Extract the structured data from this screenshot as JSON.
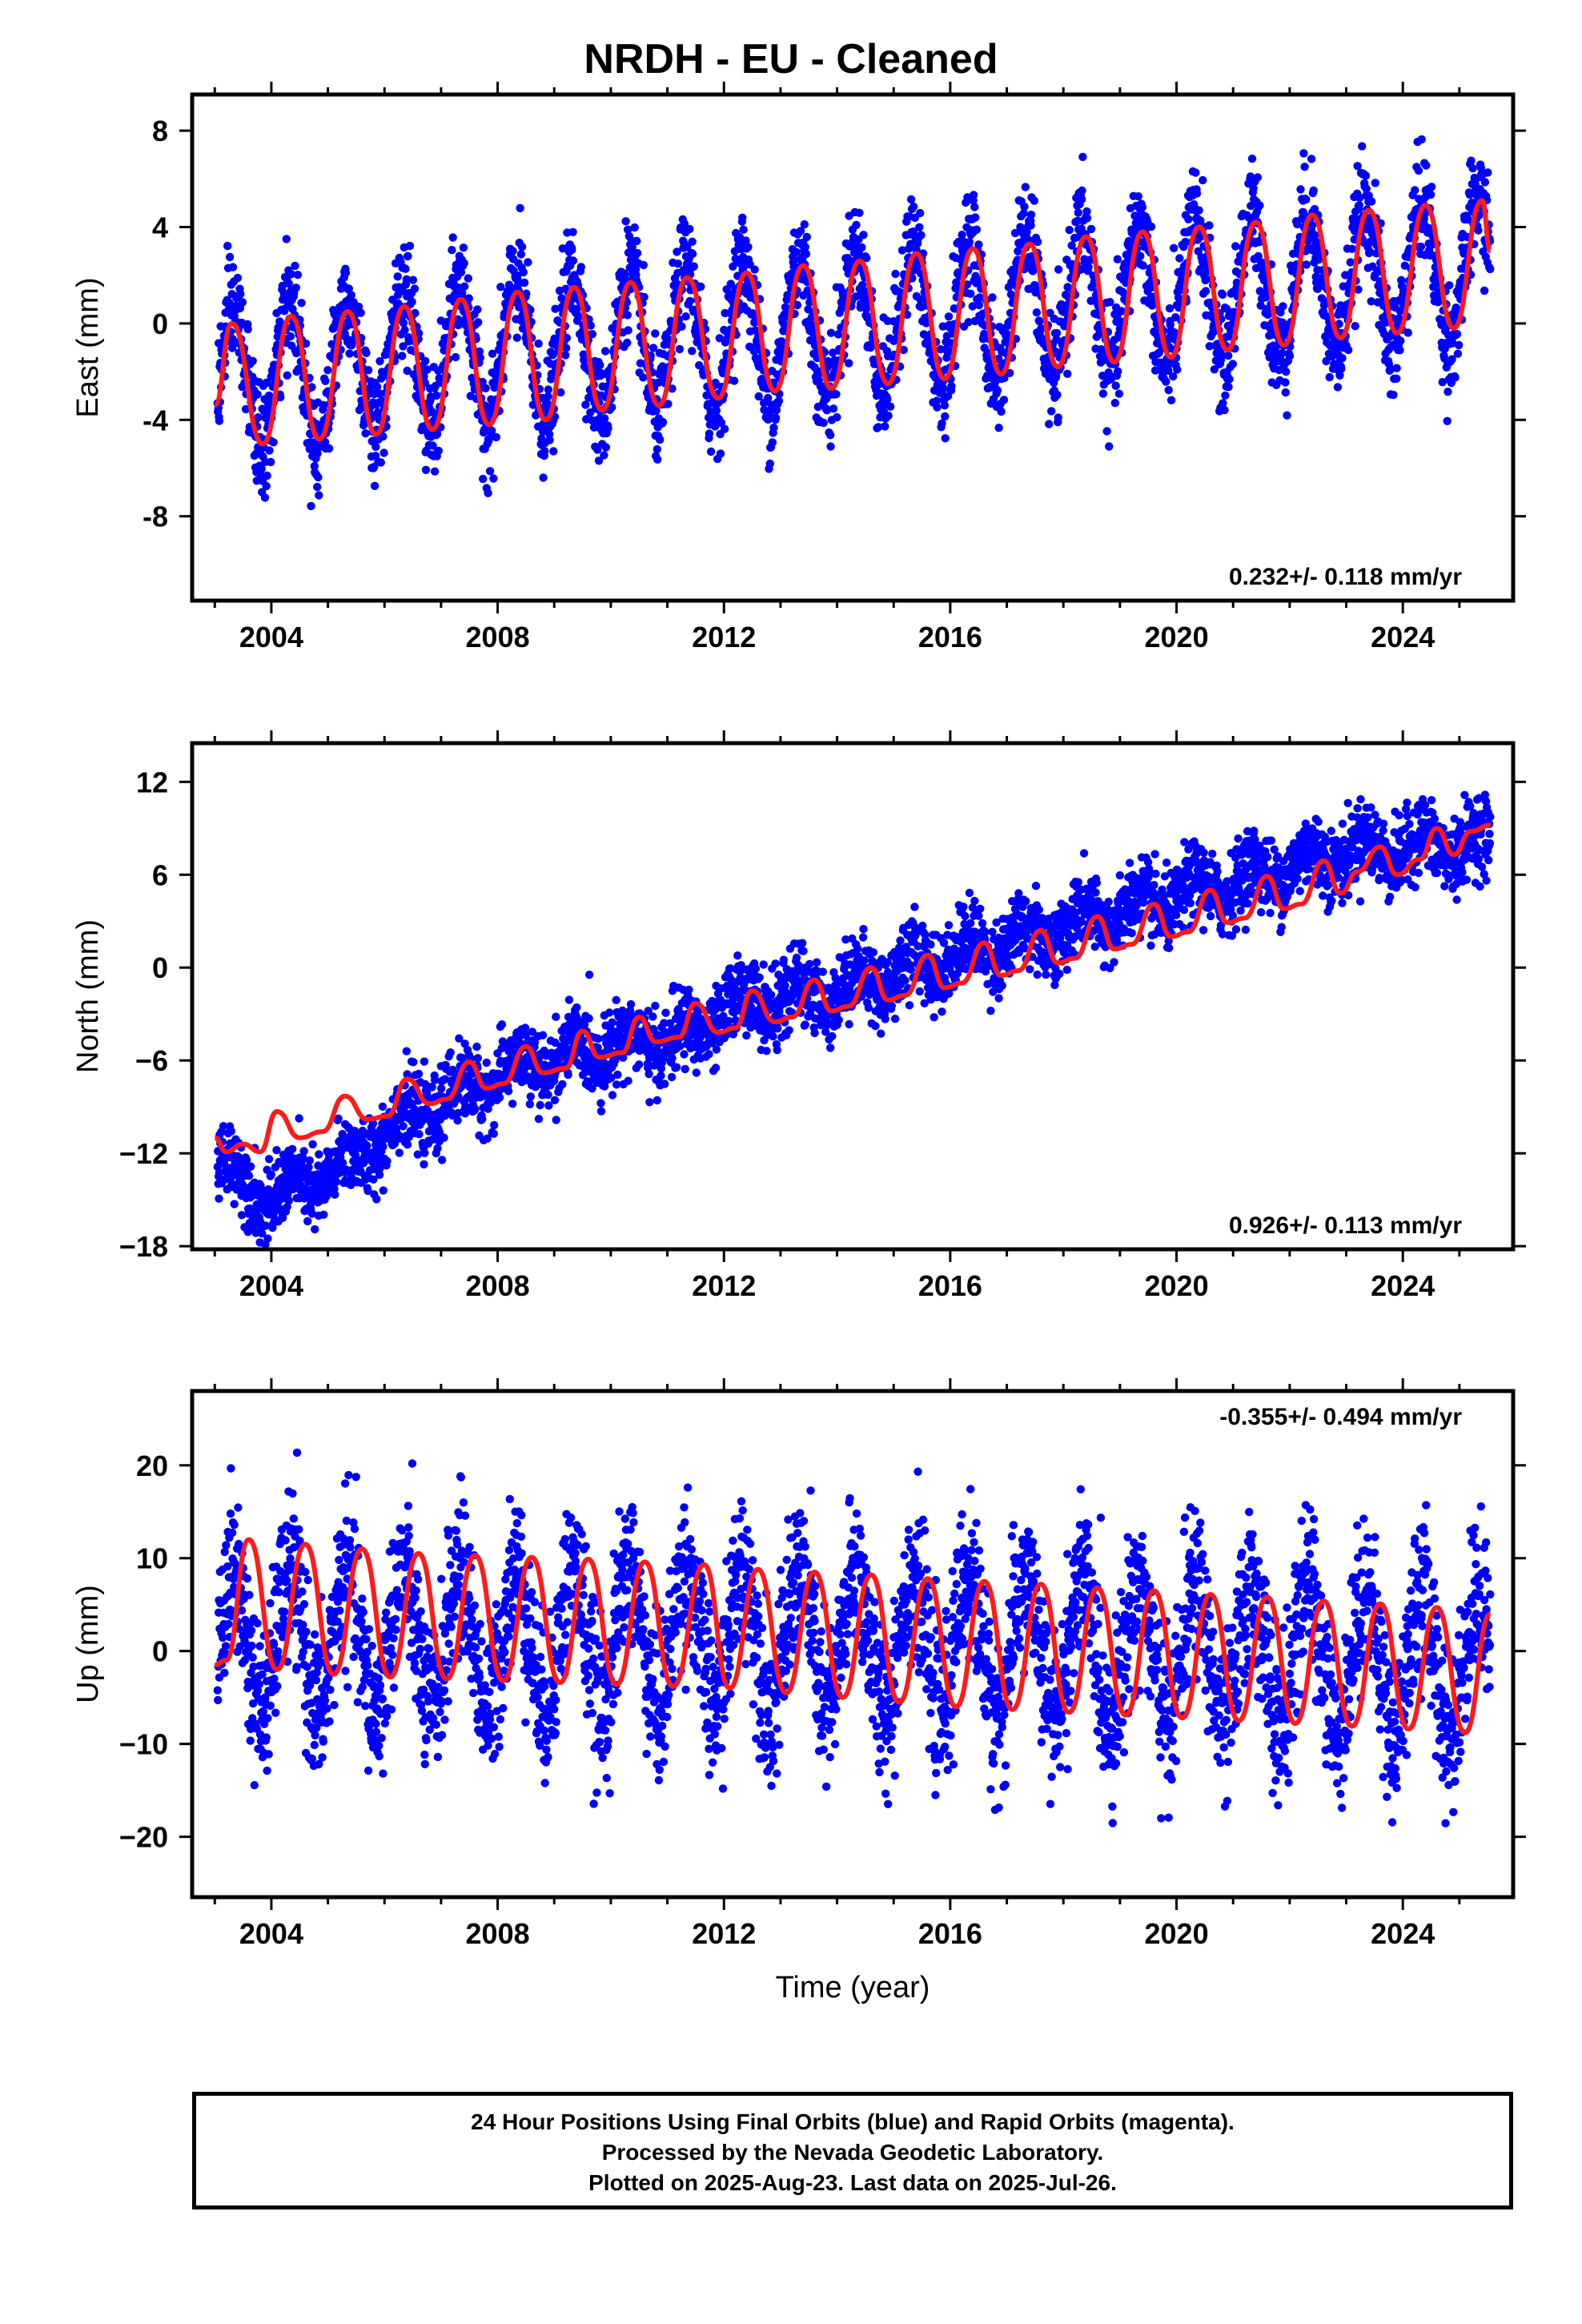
{
  "title": "NRDH  - EU - Cleaned",
  "xaxis_label": "Time (year)",
  "colors": {
    "points": "#0000ff",
    "model": "#ff1a1a",
    "frame": "#000000"
  },
  "footer": {
    "line1": "24 Hour Positions Using Final Orbits (blue) and Rapid Orbits (magenta).",
    "line2": "Processed by the Nevada Geodetic Laboratory.",
    "line3": "Plotted on 2025-Aug-23. Last data on 2025-Jul-26."
  },
  "chart_data": [
    {
      "type": "scatter",
      "component": "east",
      "ylabel": "East (mm)",
      "rate_label": "0.232+/- 0.118 mm/yr",
      "rate_label_position": "bottom-right",
      "xlim": [
        2002.6,
        2025.95
      ],
      "ylim": [
        -11.5,
        9.5
      ],
      "xticks": [
        2004,
        2008,
        2012,
        2016,
        2020,
        2024
      ],
      "yticks": [
        -8,
        -4,
        0,
        4,
        8
      ],
      "tick_labels": [
        "-8",
        "-4",
        "0",
        "4",
        "8"
      ],
      "series": [
        {
          "kind": "points",
          "x_range": [
            2003.05,
            2025.55
          ],
          "trend": [
            [
              2003.0,
              -2.4
            ],
            [
              2008.0,
              -1.2
            ],
            [
              2012.0,
              -0.5
            ],
            [
              2016.0,
              0.4
            ],
            [
              2020.0,
              1.3
            ],
            [
              2025.5,
              2.3
            ]
          ],
          "annual_amplitude": 2.9,
          "scatter_sd": 1.1
        },
        {
          "kind": "model",
          "x": [
            2003.0,
            2003.3,
            2003.85,
            2004.35,
            2004.85,
            2005.35,
            2005.85,
            2006.35,
            2006.85,
            2007.35,
            2007.85,
            2008.35,
            2008.85,
            2009.35,
            2009.85,
            2010.35,
            2010.85,
            2011.35,
            2011.9,
            2012.4,
            2012.9,
            2013.4,
            2013.9,
            2014.4,
            2014.9,
            2015.4,
            2015.9,
            2016.4,
            2016.9,
            2017.4,
            2017.9,
            2018.4,
            2018.9,
            2019.4,
            2019.9,
            2020.4,
            2020.9,
            2021.4,
            2021.9,
            2022.4,
            2022.9,
            2023.4,
            2023.9,
            2024.4,
            2024.9,
            2025.4,
            2025.55
          ],
          "y": [
            -3.4,
            0.0,
            -5.0,
            0.3,
            -4.8,
            0.5,
            -4.6,
            0.7,
            -4.4,
            1.0,
            -4.2,
            1.3,
            -4.0,
            1.5,
            -3.6,
            1.7,
            -3.4,
            1.9,
            -3.1,
            2.1,
            -2.8,
            2.4,
            -2.7,
            2.6,
            -2.5,
            2.9,
            -2.3,
            3.1,
            -2.1,
            3.3,
            -1.8,
            3.6,
            -1.6,
            3.8,
            -1.4,
            4.0,
            -1.1,
            4.2,
            -0.9,
            4.5,
            -0.6,
            4.7,
            -0.4,
            4.9,
            -0.2,
            5.1,
            3.0
          ]
        }
      ]
    },
    {
      "type": "scatter",
      "component": "north",
      "ylabel": "North (mm)",
      "rate_label": "0.926+/- 0.113 mm/yr",
      "rate_label_position": "bottom-right",
      "xlim": [
        2002.6,
        2025.95
      ],
      "ylim": [
        -18.2,
        14.5
      ],
      "xticks": [
        2004,
        2008,
        2012,
        2016,
        2020,
        2024
      ],
      "yticks": [
        -18,
        -12,
        -6,
        0,
        6,
        12
      ],
      "tick_labels": [
        "−18",
        "−12",
        "−6",
        "0",
        "6",
        "12"
      ],
      "series": [
        {
          "kind": "points",
          "x_range": [
            2003.05,
            2025.55
          ],
          "trend": [
            [
              2003.0,
              -12.5
            ],
            [
              2004.0,
              -15.0
            ],
            [
              2005.5,
              -12.5
            ],
            [
              2006.0,
              -10.5
            ],
            [
              2008.0,
              -7.0
            ],
            [
              2010.0,
              -5.0
            ],
            [
              2011.5,
              -4.5
            ],
            [
              2012.0,
              -2.5
            ],
            [
              2014.0,
              -1.5
            ],
            [
              2016.0,
              0.8
            ],
            [
              2018.0,
              2.5
            ],
            [
              2020.0,
              4.5
            ],
            [
              2022.0,
              6.5
            ],
            [
              2023.0,
              7.5
            ],
            [
              2025.5,
              8.0
            ]
          ],
          "annual_amplitude": 0.9,
          "scatter_sd": 1.2
        },
        {
          "kind": "model",
          "x": [
            2003.0,
            2003.2,
            2003.5,
            2003.8,
            2004.1,
            2004.5,
            2004.9,
            2005.3,
            2005.7,
            2006.05,
            2006.4,
            2006.8,
            2007.1,
            2007.5,
            2007.8,
            2008.1,
            2008.5,
            2008.8,
            2009.2,
            2009.5,
            2009.8,
            2010.2,
            2010.5,
            2010.8,
            2011.2,
            2011.5,
            2011.9,
            2012.2,
            2012.5,
            2012.9,
            2013.2,
            2013.6,
            2013.9,
            2014.2,
            2014.6,
            2014.9,
            2015.2,
            2015.6,
            2015.9,
            2016.2,
            2016.6,
            2016.9,
            2017.2,
            2017.6,
            2017.9,
            2018.2,
            2018.6,
            2018.9,
            2019.2,
            2019.6,
            2019.9,
            2020.2,
            2020.6,
            2020.9,
            2021.2,
            2021.6,
            2021.9,
            2022.2,
            2022.6,
            2022.9,
            2023.2,
            2023.6,
            2023.9,
            2024.3,
            2024.6,
            2024.9,
            2025.2,
            2025.55
          ],
          "y": [
            -11.0,
            -11.9,
            -11.4,
            -11.9,
            -9.3,
            -11.0,
            -10.6,
            -8.3,
            -9.8,
            -9.6,
            -7.2,
            -8.8,
            -8.5,
            -6.1,
            -7.8,
            -7.5,
            -5.1,
            -6.8,
            -6.5,
            -4.1,
            -5.8,
            -5.5,
            -3.2,
            -4.8,
            -4.5,
            -2.3,
            -4.2,
            -3.9,
            -1.5,
            -3.5,
            -3.2,
            -0.8,
            -2.8,
            -2.5,
            0.0,
            -2.1,
            -1.8,
            0.8,
            -1.3,
            -1.0,
            1.6,
            -0.5,
            -0.2,
            2.4,
            0.3,
            0.6,
            3.3,
            1.2,
            1.5,
            4.1,
            2.0,
            2.3,
            5.0,
            2.9,
            3.2,
            5.9,
            3.8,
            4.1,
            6.9,
            4.8,
            6.2,
            7.8,
            6.0,
            7.0,
            9.0,
            7.3,
            8.8,
            9.2
          ]
        }
      ]
    },
    {
      "type": "scatter",
      "component": "up",
      "ylabel": "Up (mm)",
      "rate_label": "-0.355+/- 0.494 mm/yr",
      "rate_label_position": "top-right",
      "xlim": [
        2002.6,
        2025.95
      ],
      "ylim": [
        -26.5,
        28.0
      ],
      "xticks": [
        2004,
        2008,
        2012,
        2016,
        2020,
        2024
      ],
      "yticks": [
        -20,
        -10,
        0,
        10,
        20
      ],
      "tick_labels": [
        "−20",
        "−10",
        "0",
        "10",
        "20"
      ],
      "series": [
        {
          "kind": "points",
          "x_range": [
            2003.05,
            2025.55
          ],
          "trend": [
            [
              2003.0,
              1.0
            ],
            [
              2012.0,
              1.5
            ],
            [
              2025.5,
              -1.5
            ]
          ],
          "annual_amplitude": 7.5,
          "scatter_sd": 4.2
        },
        {
          "kind": "model",
          "x": [
            2003.0,
            2003.2,
            2003.6,
            2004.1,
            2004.6,
            2005.1,
            2005.6,
            2006.1,
            2006.6,
            2007.1,
            2007.6,
            2008.1,
            2008.6,
            2009.1,
            2009.6,
            2010.1,
            2010.6,
            2011.1,
            2011.65,
            2012.1,
            2012.6,
            2013.1,
            2013.6,
            2014.1,
            2014.6,
            2015.1,
            2015.6,
            2016.1,
            2016.6,
            2017.1,
            2017.6,
            2018.1,
            2018.6,
            2019.1,
            2019.6,
            2020.1,
            2020.6,
            2021.1,
            2021.6,
            2022.1,
            2022.6,
            2023.1,
            2023.6,
            2024.1,
            2024.6,
            2025.1,
            2025.55
          ],
          "y": [
            -1.5,
            -1.0,
            12.0,
            -2.0,
            11.5,
            -2.5,
            11.0,
            -2.8,
            10.5,
            -3.0,
            10.3,
            -3.2,
            10.1,
            -3.4,
            9.9,
            -3.6,
            9.6,
            -3.8,
            9.3,
            -4.0,
            8.8,
            -4.5,
            8.5,
            -5.0,
            8.2,
            -5.5,
            7.8,
            -6.0,
            7.5,
            -6.3,
            7.2,
            -6.6,
            6.8,
            -6.9,
            6.5,
            -7.2,
            6.1,
            -7.5,
            5.8,
            -7.8,
            5.4,
            -8.1,
            5.1,
            -8.4,
            4.7,
            -8.8,
            4.0
          ]
        }
      ]
    }
  ]
}
